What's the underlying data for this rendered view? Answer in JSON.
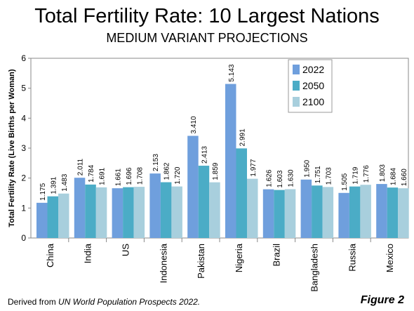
{
  "title": "Total Fertility Rate: 10 Largest Nations",
  "subtitle": "MEDIUM VARIANT PROJECTIONS",
  "footer_prefix": "Derived from ",
  "footer_source": "UN World Population Prospects 2022.",
  "figure_label": "Figure 2",
  "colors": {
    "2022": "#6f9fdd",
    "2050": "#4bacc6",
    "2100": "#a8cfdd"
  },
  "chart_data": {
    "type": "bar",
    "title": "Total Fertility Rate: 10 Largest Nations",
    "subtitle": "MEDIUM VARIANT PROJECTIONS",
    "xlabel": "",
    "ylabel": "Total Fertility Rate (Live Births per Woman)",
    "ylim": [
      0,
      6
    ],
    "yticks": [
      0,
      1,
      2,
      3,
      4,
      5,
      6
    ],
    "grid": false,
    "legend_position": "top-right",
    "categories": [
      "China",
      "India",
      "US",
      "Indonesia",
      "Pakistan",
      "Nigeria",
      "Brazil",
      "Bangladesh",
      "Russia",
      "Mexico"
    ],
    "series": [
      {
        "name": "2022",
        "values": [
          1.175,
          2.011,
          1.661,
          2.153,
          3.41,
          5.143,
          1.626,
          1.95,
          1.505,
          1.803
        ]
      },
      {
        "name": "2050",
        "values": [
          1.391,
          1.784,
          1.696,
          1.862,
          2.413,
          2.991,
          1.603,
          1.751,
          1.719,
          1.684
        ]
      },
      {
        "name": "2100",
        "values": [
          1.483,
          1.691,
          1.708,
          1.72,
          1.859,
          1.977,
          1.63,
          1.703,
          1.776,
          1.66
        ]
      }
    ]
  }
}
